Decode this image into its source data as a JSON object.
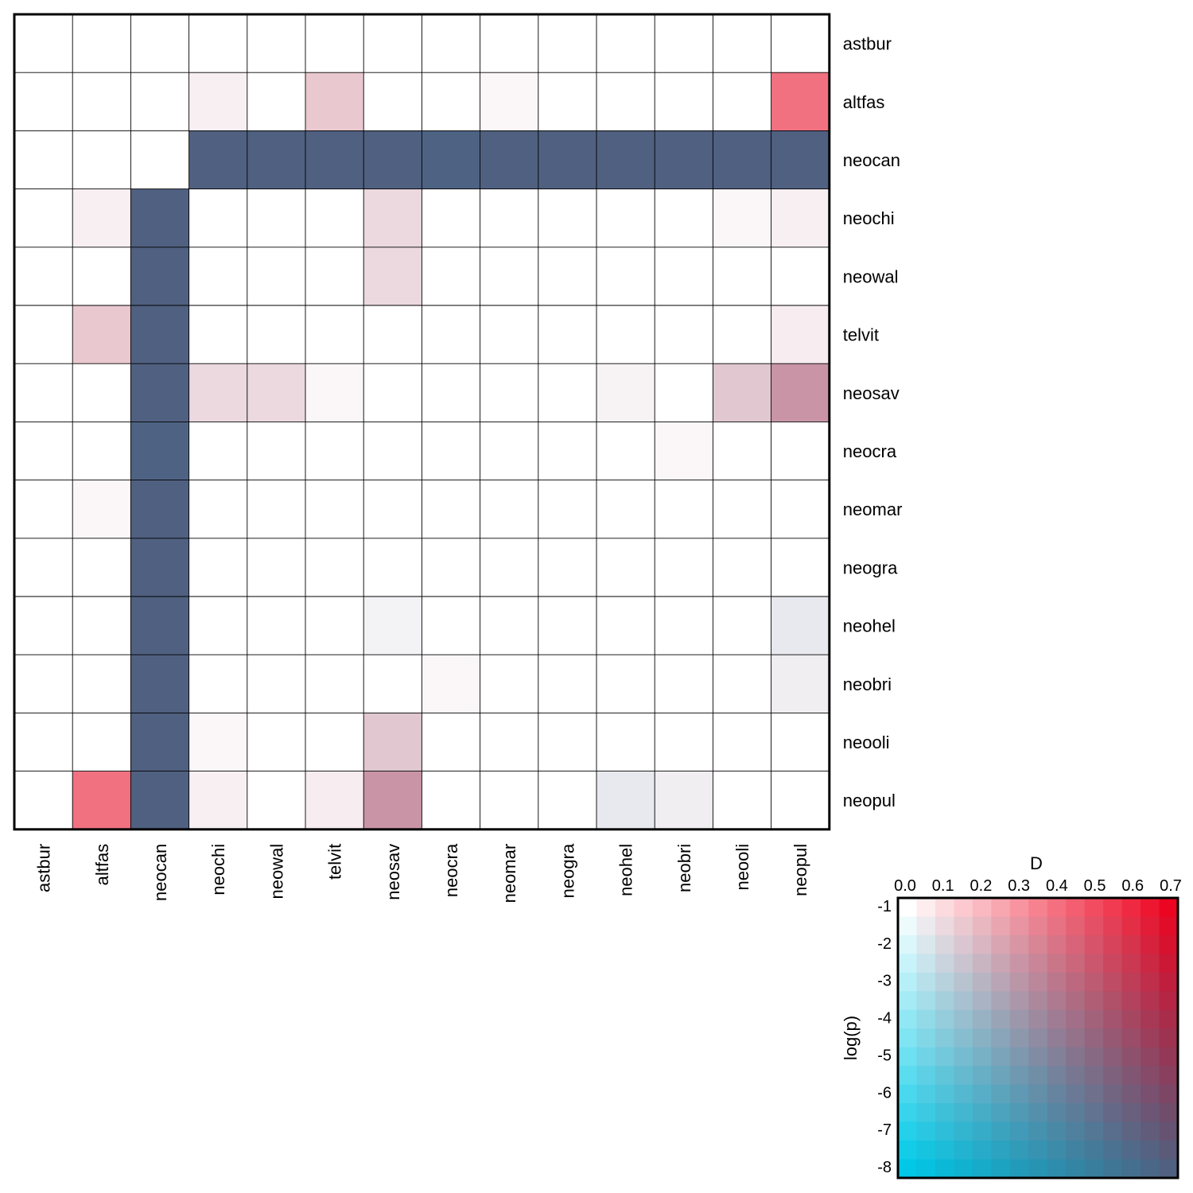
{
  "chart_data": [
    {
      "type": "heatmap",
      "categories": [
        "astbur",
        "altfas",
        "neocan",
        "neochi",
        "neowal",
        "telvit",
        "neosav",
        "neocra",
        "neomar",
        "neogra",
        "neohel",
        "neobri",
        "neooli",
        "neopul"
      ],
      "value_description": "Each cell holds [D, log(p)]; colour is a bivariate blend (D: white→red, log(p): white→cyan; both → dark slate)",
      "cells": [
        [
          [
            0,
            -1
          ],
          [
            0,
            -1
          ],
          [
            0,
            -1
          ],
          [
            0,
            -1
          ],
          [
            0,
            -1
          ],
          [
            0,
            -1
          ],
          [
            0,
            -1
          ],
          [
            0,
            -1
          ],
          [
            0,
            -1
          ],
          [
            0,
            -1
          ],
          [
            0,
            -1
          ],
          [
            0,
            -1
          ],
          [
            0,
            -1
          ],
          [
            0,
            -1
          ]
        ],
        [
          [
            0,
            -1
          ],
          [
            0,
            -1
          ],
          [
            0,
            -1
          ],
          [
            0.04,
            -1.2
          ],
          [
            0,
            -1
          ],
          [
            0.15,
            -1.5
          ],
          [
            0,
            -1
          ],
          [
            0,
            -1
          ],
          [
            0.02,
            -1.1
          ],
          [
            0,
            -1
          ],
          [
            0,
            -1
          ],
          [
            0,
            -1
          ],
          [
            0,
            -1
          ],
          [
            0.4,
            -1.1
          ]
        ],
        [
          [
            0,
            -1
          ],
          [
            0,
            -1
          ],
          [
            0,
            -1
          ],
          [
            0.7,
            -8
          ],
          [
            0.7,
            -8
          ],
          [
            0.7,
            -8
          ],
          [
            0.7,
            -8
          ],
          [
            0.68,
            -8
          ],
          [
            0.7,
            -8
          ],
          [
            0.7,
            -8
          ],
          [
            0.7,
            -8
          ],
          [
            0.7,
            -8
          ],
          [
            0.7,
            -8
          ],
          [
            0.7,
            -8
          ]
        ],
        [
          [
            0,
            -1
          ],
          [
            0.04,
            -1.2
          ],
          [
            0.7,
            -8
          ],
          [
            0,
            -1
          ],
          [
            0,
            -1
          ],
          [
            0,
            -1
          ],
          [
            0.1,
            -1.5
          ],
          [
            0,
            -1
          ],
          [
            0,
            -1
          ],
          [
            0,
            -1
          ],
          [
            0,
            -1
          ],
          [
            0,
            -1
          ],
          [
            0.02,
            -1.1
          ],
          [
            0.04,
            -1.2
          ]
        ],
        [
          [
            0,
            -1
          ],
          [
            0,
            -1
          ],
          [
            0.7,
            -8
          ],
          [
            0,
            -1
          ],
          [
            0,
            -1
          ],
          [
            0,
            -1
          ],
          [
            0.1,
            -1.5
          ],
          [
            0,
            -1
          ],
          [
            0,
            -1
          ],
          [
            0,
            -1
          ],
          [
            0,
            -1
          ],
          [
            0,
            -1
          ],
          [
            0,
            -1
          ],
          [
            0,
            -1
          ]
        ],
        [
          [
            0,
            -1
          ],
          [
            0.15,
            -1.5
          ],
          [
            0.7,
            -8
          ],
          [
            0,
            -1
          ],
          [
            0,
            -1
          ],
          [
            0,
            -1
          ],
          [
            0,
            -1
          ],
          [
            0,
            -1
          ],
          [
            0,
            -1
          ],
          [
            0,
            -1
          ],
          [
            0,
            -1
          ],
          [
            0,
            -1
          ],
          [
            0,
            -1
          ],
          [
            0.05,
            -1.2
          ]
        ],
        [
          [
            0,
            -1
          ],
          [
            0,
            -1
          ],
          [
            0.7,
            -8
          ],
          [
            0.1,
            -1.5
          ],
          [
            0.1,
            -1.5
          ],
          [
            0.02,
            -1.1
          ],
          [
            0,
            -1
          ],
          [
            0,
            -1
          ],
          [
            0,
            -1
          ],
          [
            0,
            -1
          ],
          [
            0.03,
            -1.2
          ],
          [
            0,
            -1
          ],
          [
            0.15,
            -1.8
          ],
          [
            0.3,
            -2.5
          ]
        ],
        [
          [
            0,
            -1
          ],
          [
            0,
            -1
          ],
          [
            0.68,
            -8
          ],
          [
            0,
            -1
          ],
          [
            0,
            -1
          ],
          [
            0,
            -1
          ],
          [
            0,
            -1
          ],
          [
            0,
            -1
          ],
          [
            0,
            -1
          ],
          [
            0,
            -1
          ],
          [
            0,
            -1
          ],
          [
            0.02,
            -1.1
          ],
          [
            0,
            -1
          ],
          [
            0,
            -1
          ]
        ],
        [
          [
            0,
            -1
          ],
          [
            0.02,
            -1.1
          ],
          [
            0.7,
            -8
          ],
          [
            0,
            -1
          ],
          [
            0,
            -1
          ],
          [
            0,
            -1
          ],
          [
            0,
            -1
          ],
          [
            0,
            -1
          ],
          [
            0,
            -1
          ],
          [
            0,
            -1
          ],
          [
            0,
            -1
          ],
          [
            0,
            -1
          ],
          [
            0,
            -1
          ],
          [
            0,
            -1
          ]
        ],
        [
          [
            0,
            -1
          ],
          [
            0,
            -1
          ],
          [
            0.7,
            -8
          ],
          [
            0,
            -1
          ],
          [
            0,
            -1
          ],
          [
            0,
            -1
          ],
          [
            0,
            -1
          ],
          [
            0,
            -1
          ],
          [
            0,
            -1
          ],
          [
            0,
            -1
          ],
          [
            0,
            -1
          ],
          [
            0,
            -1
          ],
          [
            0,
            -1
          ],
          [
            0,
            -1
          ]
        ],
        [
          [
            0,
            -1
          ],
          [
            0,
            -1
          ],
          [
            0.7,
            -8
          ],
          [
            0,
            -1
          ],
          [
            0,
            -1
          ],
          [
            0,
            -1
          ],
          [
            0.03,
            -1.3
          ],
          [
            0,
            -1
          ],
          [
            0,
            -1
          ],
          [
            0,
            -1
          ],
          [
            0,
            -1
          ],
          [
            0,
            -1
          ],
          [
            0,
            -1
          ],
          [
            0.05,
            -1.6
          ]
        ],
        [
          [
            0,
            -1
          ],
          [
            0,
            -1
          ],
          [
            0.7,
            -8
          ],
          [
            0,
            -1
          ],
          [
            0,
            -1
          ],
          [
            0,
            -1
          ],
          [
            0,
            -1
          ],
          [
            0.02,
            -1.1
          ],
          [
            0,
            -1
          ],
          [
            0,
            -1
          ],
          [
            0,
            -1
          ],
          [
            0,
            -1
          ],
          [
            0,
            -1
          ],
          [
            0.04,
            -1.4
          ]
        ],
        [
          [
            0,
            -1
          ],
          [
            0,
            -1
          ],
          [
            0.7,
            -8
          ],
          [
            0.02,
            -1.1
          ],
          [
            0,
            -1
          ],
          [
            0,
            -1
          ],
          [
            0.15,
            -1.8
          ],
          [
            0,
            -1
          ],
          [
            0,
            -1
          ],
          [
            0,
            -1
          ],
          [
            0,
            -1
          ],
          [
            0,
            -1
          ],
          [
            0,
            -1
          ],
          [
            0,
            -1
          ]
        ],
        [
          [
            0,
            -1
          ],
          [
            0.4,
            -1.1
          ],
          [
            0.7,
            -8
          ],
          [
            0.04,
            -1.2
          ],
          [
            0,
            -1
          ],
          [
            0.05,
            -1.2
          ],
          [
            0.3,
            -2.5
          ],
          [
            0,
            -1
          ],
          [
            0,
            -1
          ],
          [
            0,
            -1
          ],
          [
            0.05,
            -1.6
          ],
          [
            0.04,
            -1.4
          ],
          [
            0,
            -1
          ],
          [
            0,
            -1
          ]
        ]
      ],
      "grid": true
    },
    {
      "type": "heatmap",
      "role": "legend",
      "xlabel": "D",
      "ylabel": "log(p)",
      "x_ticks": [
        "0.0",
        "0.1",
        "0.2",
        "0.3",
        "0.4",
        "0.5",
        "0.6",
        "0.7"
      ],
      "y_ticks": [
        "-1",
        "-2",
        "-3",
        "-4",
        "-5",
        "-6",
        "-7",
        "-8"
      ],
      "xlim": [
        0,
        0.7
      ],
      "ylim": [
        -8,
        -1
      ]
    }
  ],
  "colors": {
    "high_D": "#ec0521",
    "low_p": "#00c8e6",
    "both": "#506080",
    "background": "#ffffff",
    "grid_line": "#000000"
  }
}
